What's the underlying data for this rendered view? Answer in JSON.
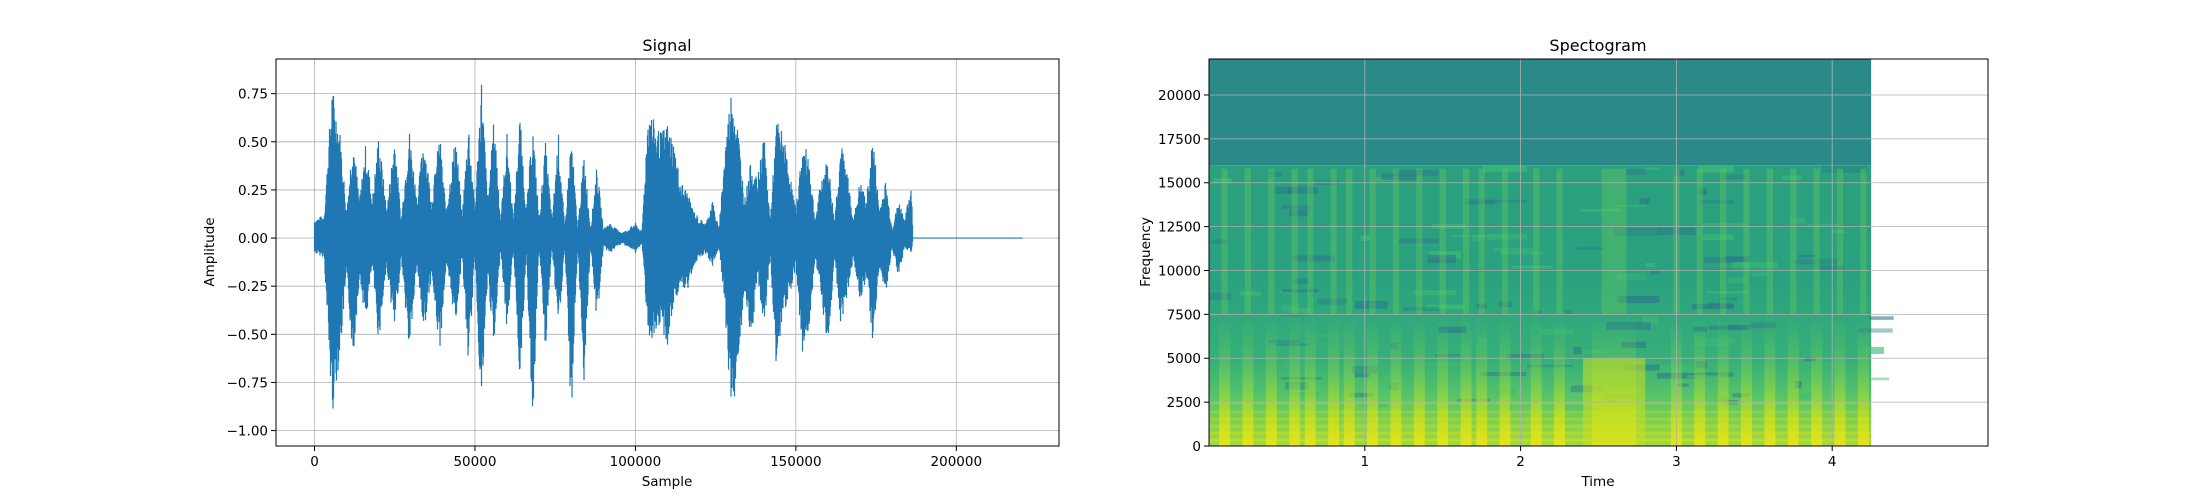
{
  "chart_data": [
    {
      "type": "line",
      "title": "Signal",
      "xlabel": "Sample",
      "ylabel": "Amplitude",
      "xlim": [
        -12000,
        232000
      ],
      "ylim": [
        -1.08,
        0.93
      ],
      "grid": true,
      "xticks": [
        0,
        50000,
        100000,
        150000,
        200000
      ],
      "xtick_labels": [
        "0",
        "50000",
        "100000",
        "150000",
        "200000"
      ],
      "yticks": [
        -1.0,
        -0.75,
        -0.5,
        -0.25,
        0.0,
        0.25,
        0.5,
        0.75
      ],
      "ytick_labels": [
        "−1.00",
        "−0.75",
        "−0.50",
        "−0.25",
        "0.00",
        "0.25",
        "0.50",
        "0.75"
      ],
      "series": [
        {
          "color": "#1f77b4",
          "n_samples": 220500,
          "envelope_x": [
            0,
            3000,
            5500,
            8000,
            10000,
            12000,
            14000,
            16000,
            18000,
            20000,
            22500,
            25000,
            27000,
            29500,
            32000,
            34000,
            36500,
            39000,
            41000,
            44000,
            46000,
            48000,
            50000,
            52000,
            54000,
            56000,
            58000,
            60000,
            62000,
            64000,
            66000,
            68000,
            70000,
            72000,
            74000,
            76000,
            78000,
            80000,
            82000,
            84000,
            86000,
            88000,
            90000,
            92000,
            94000,
            96000,
            98000,
            100000,
            102000,
            104000,
            106000,
            108000,
            110000,
            112000,
            114000,
            116000,
            118000,
            120000,
            122000,
            124000,
            126000,
            128000,
            130000,
            132000,
            134000,
            136000,
            138000,
            140000,
            142000,
            144000,
            146000,
            148000,
            150000,
            152000,
            154000,
            156000,
            158000,
            160000,
            162000,
            164000,
            166000,
            168000,
            170000,
            172000,
            174000,
            176000,
            178000,
            180000,
            182000,
            184000,
            186000,
            186500,
            220500
          ],
          "envelope_max": [
            0.1,
            0.12,
            0.8,
            0.55,
            0.15,
            0.55,
            0.2,
            0.5,
            0.2,
            0.55,
            0.15,
            0.55,
            0.1,
            0.58,
            0.2,
            0.55,
            0.2,
            0.55,
            0.15,
            0.55,
            0.12,
            0.62,
            0.15,
            0.85,
            0.2,
            0.65,
            0.1,
            0.55,
            0.1,
            0.65,
            0.15,
            0.6,
            0.1,
            0.5,
            0.1,
            0.55,
            0.05,
            0.55,
            0.05,
            0.45,
            0.05,
            0.38,
            0.05,
            0.08,
            0.05,
            0.03,
            0.05,
            0.08,
            0.03,
            0.7,
            0.6,
            0.55,
            0.6,
            0.5,
            0.3,
            0.25,
            0.15,
            0.1,
            0.08,
            0.2,
            0.05,
            0.5,
            0.8,
            0.58,
            0.2,
            0.4,
            0.3,
            0.55,
            0.1,
            0.62,
            0.55,
            0.35,
            0.15,
            0.48,
            0.45,
            0.1,
            0.32,
            0.42,
            0.1,
            0.5,
            0.35,
            0.1,
            0.3,
            0.2,
            0.55,
            0.15,
            0.3,
            0.05,
            0.2,
            0.1,
            0.3,
            0.0,
            0.0
          ],
          "envelope_min": [
            -0.08,
            -0.1,
            -0.93,
            -0.6,
            -0.2,
            -0.65,
            -0.2,
            -0.45,
            -0.15,
            -0.55,
            -0.15,
            -0.5,
            -0.1,
            -0.6,
            -0.15,
            -0.5,
            -0.2,
            -0.6,
            -0.15,
            -0.45,
            -0.1,
            -0.68,
            -0.1,
            -0.92,
            -0.2,
            -0.6,
            -0.05,
            -0.5,
            -0.05,
            -0.75,
            -0.1,
            -0.98,
            -0.05,
            -0.6,
            -0.05,
            -0.5,
            -0.05,
            -0.96,
            -0.05,
            -0.75,
            -0.05,
            -0.45,
            -0.05,
            -0.08,
            -0.05,
            -0.03,
            -0.05,
            -0.08,
            -0.03,
            -0.5,
            -0.6,
            -0.45,
            -0.58,
            -0.35,
            -0.25,
            -0.3,
            -0.15,
            -0.1,
            -0.08,
            -0.15,
            -0.05,
            -0.4,
            -0.98,
            -0.65,
            -0.3,
            -0.58,
            -0.2,
            -0.5,
            -0.1,
            -0.7,
            -0.4,
            -0.3,
            -0.15,
            -0.6,
            -0.5,
            -0.1,
            -0.3,
            -0.62,
            -0.1,
            -0.45,
            -0.3,
            -0.1,
            -0.35,
            -0.2,
            -0.55,
            -0.15,
            -0.3,
            -0.05,
            -0.2,
            -0.05,
            -0.08,
            0.0,
            0.0
          ]
        }
      ]
    },
    {
      "type": "heatmap",
      "title": "Spectogram",
      "xlabel": "Time",
      "ylabel": "Frequency",
      "xlim": [
        0,
        5
      ],
      "ylim": [
        0,
        22050
      ],
      "grid": true,
      "xticks": [
        1,
        2,
        3,
        4
      ],
      "xtick_labels": [
        "1",
        "2",
        "3",
        "4"
      ],
      "yticks": [
        0,
        2500,
        5000,
        7500,
        10000,
        12500,
        15000,
        17500,
        20000
      ],
      "ytick_labels": [
        "0",
        "2500",
        "5000",
        "7500",
        "10000",
        "12500",
        "15000",
        "17500",
        "20000"
      ],
      "colormap": "viridis",
      "data_extent_time": [
        0,
        4.25
      ],
      "data_extent_freq": [
        0,
        22050
      ],
      "lowpass_cutoff_hz": 16000,
      "speech_segments_time": [
        [
          0.05,
          0.15
        ],
        [
          0.2,
          0.3
        ],
        [
          0.35,
          0.45
        ],
        [
          0.5,
          0.6
        ],
        [
          0.6,
          0.7
        ],
        [
          0.75,
          0.85
        ],
        [
          0.85,
          0.95
        ],
        [
          1.0,
          1.1
        ],
        [
          1.15,
          1.25
        ],
        [
          1.3,
          1.4
        ],
        [
          1.45,
          1.55
        ],
        [
          1.6,
          1.7
        ],
        [
          1.7,
          1.8
        ],
        [
          1.85,
          1.95
        ],
        [
          2.05,
          2.15
        ],
        [
          2.2,
          2.3
        ],
        [
          2.4,
          2.8
        ],
        [
          2.95,
          3.05
        ],
        [
          3.1,
          3.2
        ],
        [
          3.25,
          3.35
        ],
        [
          3.4,
          3.5
        ],
        [
          3.55,
          3.65
        ],
        [
          3.7,
          3.8
        ],
        [
          3.85,
          3.95
        ],
        [
          4.0,
          4.1
        ],
        [
          4.15,
          4.25
        ]
      ],
      "colors": {
        "high_band_top": "#2a8a88",
        "low_energy": "#2c7a8a",
        "mid_energy": "#2aa67f",
        "high_energy": "#7ad151",
        "peak_energy": "#dde318"
      }
    }
  ]
}
